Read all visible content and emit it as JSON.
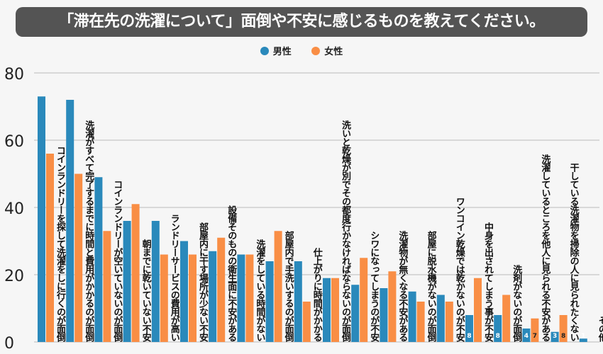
{
  "chart_data": {
    "type": "bar",
    "title": "「滞在先の洗濯について」面倒や不安に感じるものを教えてください。",
    "ylim": [
      0,
      80
    ],
    "yticks": [
      0,
      20,
      40,
      60,
      80
    ],
    "grid": true,
    "legend_position": "top",
    "colors": {
      "male": "#2a89bb",
      "female": "#f98e45"
    },
    "categories": [
      "コインランドリーを探して洗濯をしに行くのが面倒",
      "洗濯がすべて完了するまでに時間と費用がかかるのが面倒",
      "コインランドリーが空いていないのが面倒",
      "朝までに乾いていない不安",
      "ランドリーサービスの費用が高い",
      "部屋内に干す場所が少ない不安",
      "設備そのものの衛生面に不安がある",
      "洗濯をしている時間がない",
      "部屋内で手洗いするのが面倒",
      "仕上がりに時間がかかる",
      "洗いと乾燥が別でその都度行かなければならないのが面倒",
      "シワになってしまうのが不安",
      "洗濯物が無くなる不安がある",
      "部屋に脱水機がないのが面倒",
      "ワンコイン乾燥では乾かないのが不安",
      "中身を出されてしまう事が不安",
      "洗剤がないのが面倒",
      "洗濯しているところを他人に見られる不安がある",
      "干している洗濯物を掃除の人に見られたくない",
      "その他"
    ],
    "series": [
      {
        "name": "男性",
        "values": [
          73,
          72,
          49,
          36,
          36,
          30,
          27,
          26,
          24,
          24,
          19,
          17,
          16,
          15,
          14,
          8,
          8,
          4,
          3,
          1
        ]
      },
      {
        "name": "女性",
        "values": [
          56,
          50,
          33,
          41,
          26,
          26,
          31,
          26,
          33,
          12,
          19,
          25,
          21,
          12,
          12,
          19,
          14,
          7,
          8,
          0
        ]
      }
    ],
    "data_labels": {
      "male": [
        "",
        "",
        "",
        "",
        "",
        "",
        "",
        "",
        "",
        "",
        "",
        "",
        "",
        "",
        "",
        "8",
        "8",
        "4",
        "3",
        "1"
      ],
      "female": [
        "",
        "",
        "",
        "",
        "",
        "",
        "",
        "",
        "",
        "",
        "",
        "",
        "",
        "",
        "",
        "",
        "",
        "7",
        "8",
        ""
      ]
    }
  }
}
